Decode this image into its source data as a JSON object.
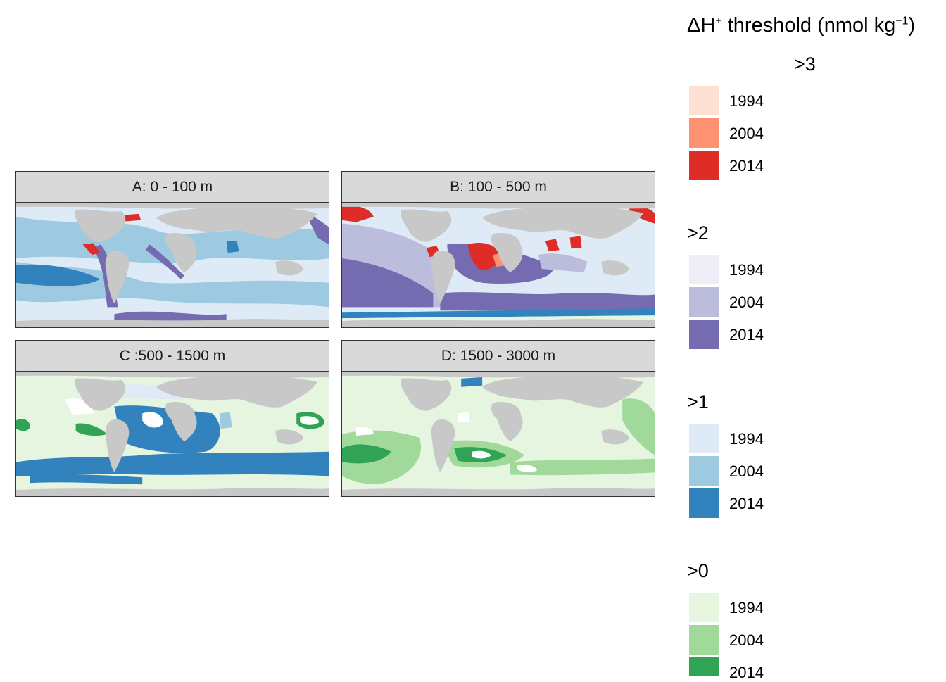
{
  "panels": [
    {
      "id": "A",
      "label": "A: 0 - 100 m"
    },
    {
      "id": "B",
      "label": "B: 100 - 500 m"
    },
    {
      "id": "C",
      "label": "C :500 - 1500 m"
    },
    {
      "id": "D",
      "label": "D: 1500 - 3000 m"
    }
  ],
  "legend": {
    "title_prefix": "ΔH",
    "title_plus": "+",
    "title_main": " threshold (nmol kg",
    "title_exp": "−1",
    "title_suffix": ")",
    "groups": [
      {
        "label": ">3",
        "items": [
          {
            "year": "1994",
            "color": "#fee0d2"
          },
          {
            "year": "2004",
            "color": "#fc9272"
          },
          {
            "year": "2014",
            "color": "#de2d26"
          }
        ]
      },
      {
        "label": ">2",
        "items": [
          {
            "year": "1994",
            "color": "#efedf5"
          },
          {
            "year": "2004",
            "color": "#bcbddc"
          },
          {
            "year": "2014",
            "color": "#756bb1"
          }
        ]
      },
      {
        "label": ">1",
        "items": [
          {
            "year": "1994",
            "color": "#deebf7"
          },
          {
            "year": "2004",
            "color": "#9ecae1"
          },
          {
            "year": "2014",
            "color": "#3182bd"
          }
        ]
      },
      {
        "label": ">0",
        "items": [
          {
            "year": "1994",
            "color": "#e5f5e0"
          },
          {
            "year": "2004",
            "color": "#a1d99b"
          },
          {
            "year": "2014",
            "color": "#31a354"
          }
        ]
      }
    ]
  },
  "colors": {
    "land": "#c8c8c8",
    "strip": "#d9d9d9",
    "border": "#333333"
  }
}
